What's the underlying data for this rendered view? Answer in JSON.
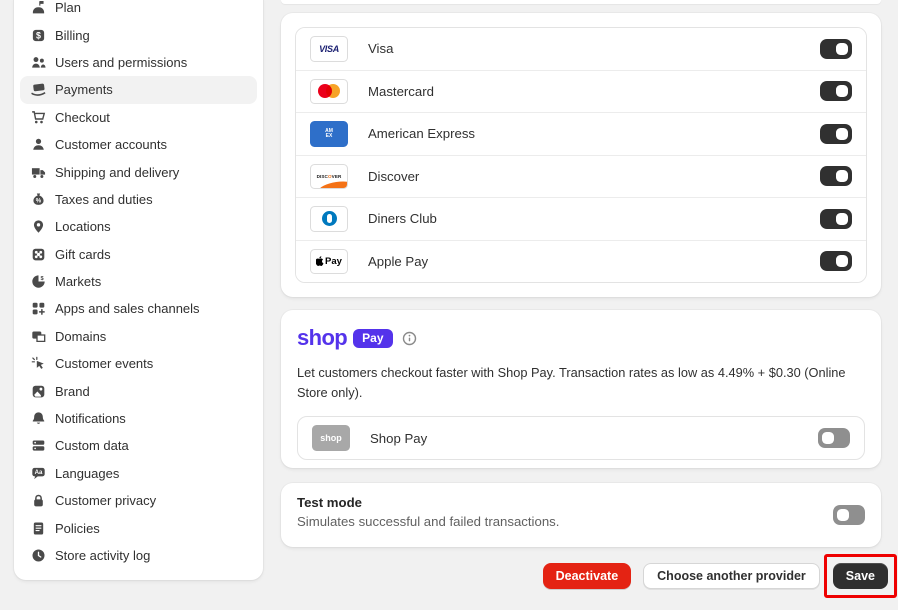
{
  "sidebar": {
    "items": [
      {
        "label": "Plan",
        "icon": "plan-icon",
        "active": false
      },
      {
        "label": "Billing",
        "icon": "billing-icon",
        "active": false
      },
      {
        "label": "Users and permissions",
        "icon": "users-icon",
        "active": false
      },
      {
        "label": "Payments",
        "icon": "payments-icon",
        "active": true
      },
      {
        "label": "Checkout",
        "icon": "checkout-icon",
        "active": false
      },
      {
        "label": "Customer accounts",
        "icon": "customer-accounts-icon",
        "active": false
      },
      {
        "label": "Shipping and delivery",
        "icon": "shipping-icon",
        "active": false
      },
      {
        "label": "Taxes and duties",
        "icon": "taxes-icon",
        "active": false
      },
      {
        "label": "Locations",
        "icon": "locations-icon",
        "active": false
      },
      {
        "label": "Gift cards",
        "icon": "gift-cards-icon",
        "active": false
      },
      {
        "label": "Markets",
        "icon": "markets-icon",
        "active": false
      },
      {
        "label": "Apps and sales channels",
        "icon": "apps-icon",
        "active": false
      },
      {
        "label": "Domains",
        "icon": "domains-icon",
        "active": false
      },
      {
        "label": "Customer events",
        "icon": "customer-events-icon",
        "active": false
      },
      {
        "label": "Brand",
        "icon": "brand-icon",
        "active": false
      },
      {
        "label": "Notifications",
        "icon": "notifications-icon",
        "active": false
      },
      {
        "label": "Custom data",
        "icon": "custom-data-icon",
        "active": false
      },
      {
        "label": "Languages",
        "icon": "languages-icon",
        "active": false
      },
      {
        "label": "Customer privacy",
        "icon": "customer-privacy-icon",
        "active": false
      },
      {
        "label": "Policies",
        "icon": "policies-icon",
        "active": false
      },
      {
        "label": "Store activity log",
        "icon": "store-activity-log-icon",
        "active": false
      }
    ]
  },
  "payment_methods": {
    "items": [
      {
        "name": "Visa",
        "icon": "visa-logo",
        "enabled": true
      },
      {
        "name": "Mastercard",
        "icon": "mastercard-logo",
        "enabled": true
      },
      {
        "name": "American Express",
        "icon": "amex-logo",
        "enabled": true
      },
      {
        "name": "Discover",
        "icon": "discover-logo",
        "enabled": true
      },
      {
        "name": "Diners Club",
        "icon": "diners-club-logo",
        "enabled": true
      },
      {
        "name": "Apple Pay",
        "icon": "apple-pay-logo",
        "enabled": true
      }
    ]
  },
  "shop_pay": {
    "brand_word": "shop",
    "badge_label": "Pay",
    "description": "Let customers checkout faster with Shop Pay. Transaction rates as low as 4.49% + $0.30 (Online Store only).",
    "row": {
      "name": "Shop Pay",
      "icon": "shop-badge",
      "enabled": false
    }
  },
  "test_mode": {
    "title": "Test mode",
    "description": "Simulates successful and failed transactions.",
    "enabled": false
  },
  "footer": {
    "deactivate_label": "Deactivate",
    "choose_provider_label": "Choose another provider",
    "save_label": "Save"
  },
  "colors": {
    "page_background": "#f1f1f1",
    "accent_purple": "#5433eb",
    "destructive_red": "#e42313",
    "save_dark": "#2f2f2f",
    "toggle_on": "#303030",
    "toggle_off": "#8f8f8f",
    "annotation_red": "#ee0000",
    "visa_blue": "#1a1f71",
    "amex_blue": "#2e6fc9",
    "diners_blue": "#0079be",
    "discover_orange": "#f47216"
  }
}
